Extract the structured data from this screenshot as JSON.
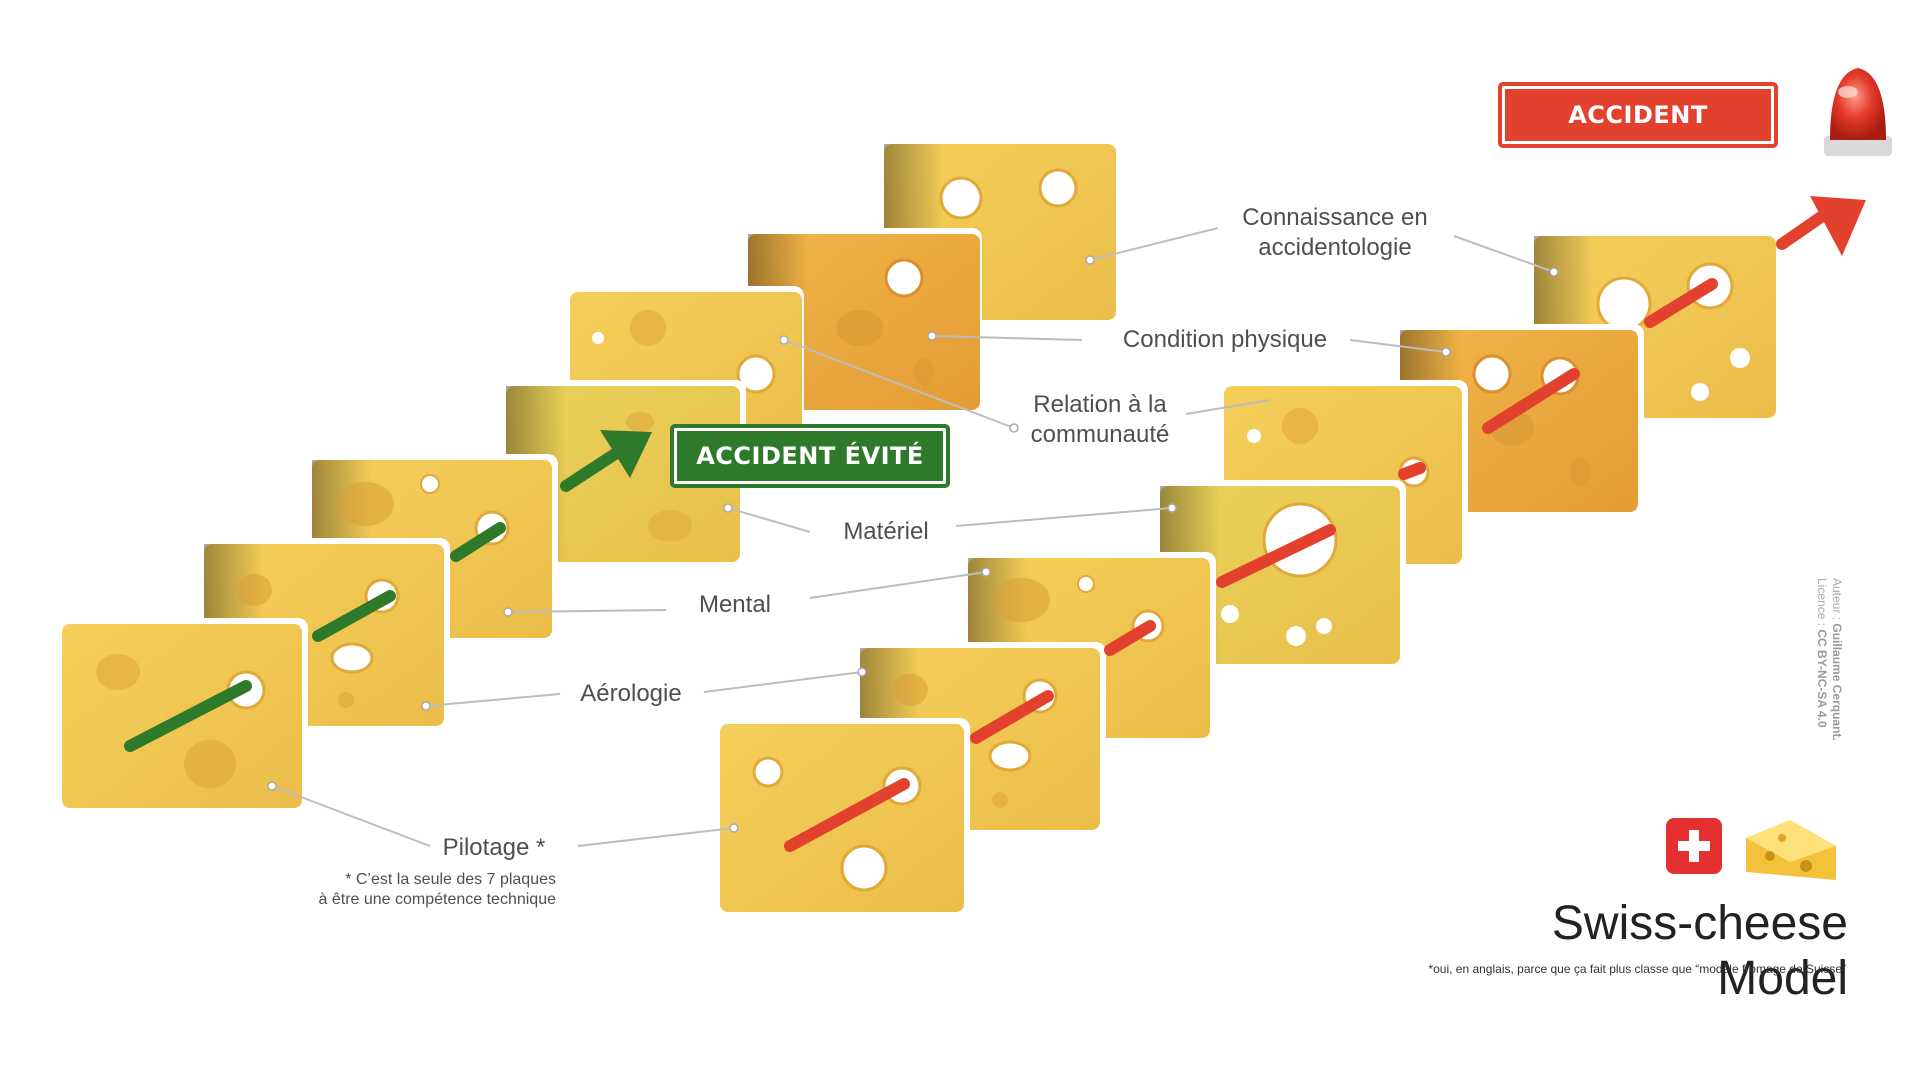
{
  "labels": {
    "pilotage": "Pilotage *",
    "aerologie": "Aérologie",
    "mental": "Mental",
    "materiel": "Matériel",
    "relation_line1": "Relation à la",
    "relation_line2": "communauté",
    "condition": "Condition physique",
    "connaissance_line1": "Connaissance en",
    "connaissance_line2": "accidentologie"
  },
  "footnote": {
    "line1": "* C’est la seule des 7 plaques",
    "line2": "à être une compétence technique"
  },
  "signs": {
    "avoided": "ACCIDENT ÉVITÉ",
    "accident": "ACCIDENT"
  },
  "title": "Swiss-cheese Model",
  "subtitle": "*oui, en anglais, parce que ça fait plus classe que “modèle fromage de Suisse”",
  "credit": {
    "author_prefix": "Auteur :",
    "author": "Guillaume Cerquant.",
    "license_prefix": "Licence :",
    "license": "CC BY-NC-SA 4.0"
  },
  "icons": {
    "siren": "rotating-siren-icon",
    "flag": "swiss-flag-icon",
    "cheese": "cheese-wedge-icon"
  },
  "colors": {
    "cheese": "#efc24f",
    "cheese_dark": "#e3a93a",
    "path_ok": "#2f7a2a",
    "path_fail": "#e2412e"
  }
}
